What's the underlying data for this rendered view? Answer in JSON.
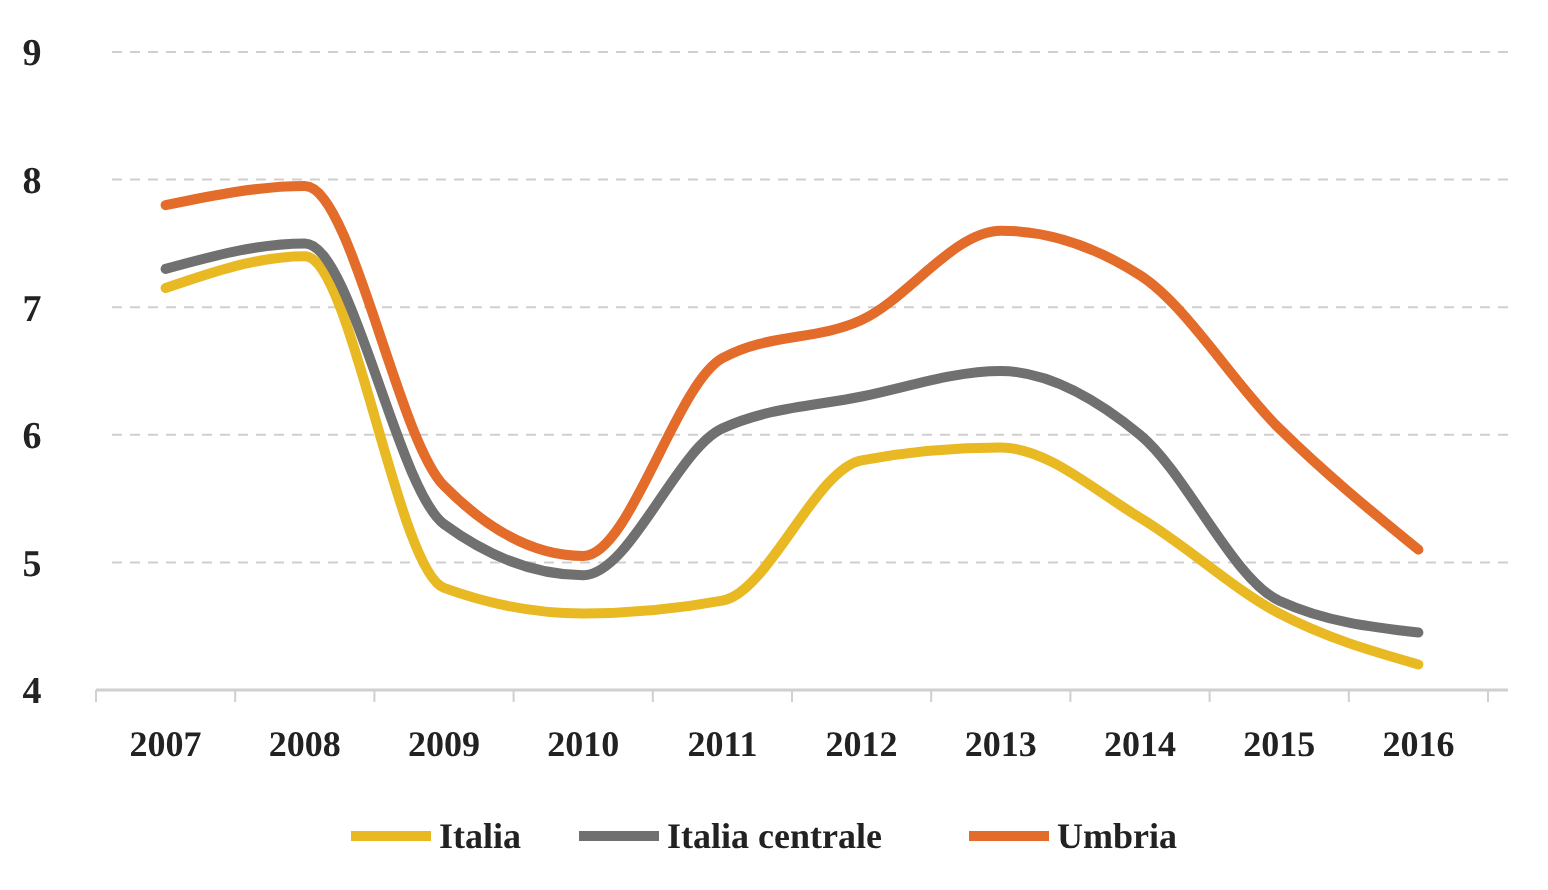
{
  "chart_data": {
    "type": "line",
    "categories": [
      "2007",
      "2008",
      "2009",
      "2010",
      "2011",
      "2012",
      "2013",
      "2014",
      "2015",
      "2016"
    ],
    "series": [
      {
        "name": "Italia",
        "color": "#e8b923",
        "values": [
          7.15,
          7.4,
          4.8,
          4.6,
          4.7,
          5.8,
          5.9,
          5.35,
          4.6,
          4.2
        ]
      },
      {
        "name": "Italia centrale",
        "color": "#707070",
        "values": [
          7.3,
          7.5,
          5.3,
          4.9,
          6.05,
          6.3,
          6.5,
          6.0,
          4.7,
          4.45
        ]
      },
      {
        "name": "Umbria",
        "color": "#e36c2a",
        "values": [
          7.8,
          7.95,
          5.6,
          5.05,
          6.6,
          6.9,
          7.6,
          7.25,
          6.05,
          5.1
        ]
      }
    ],
    "ylim": [
      4,
      9
    ],
    "yticks": [
      4,
      5,
      6,
      7,
      8,
      9
    ],
    "grid": "y",
    "legend": "bottom",
    "marker": "none",
    "line_style": "solid"
  }
}
